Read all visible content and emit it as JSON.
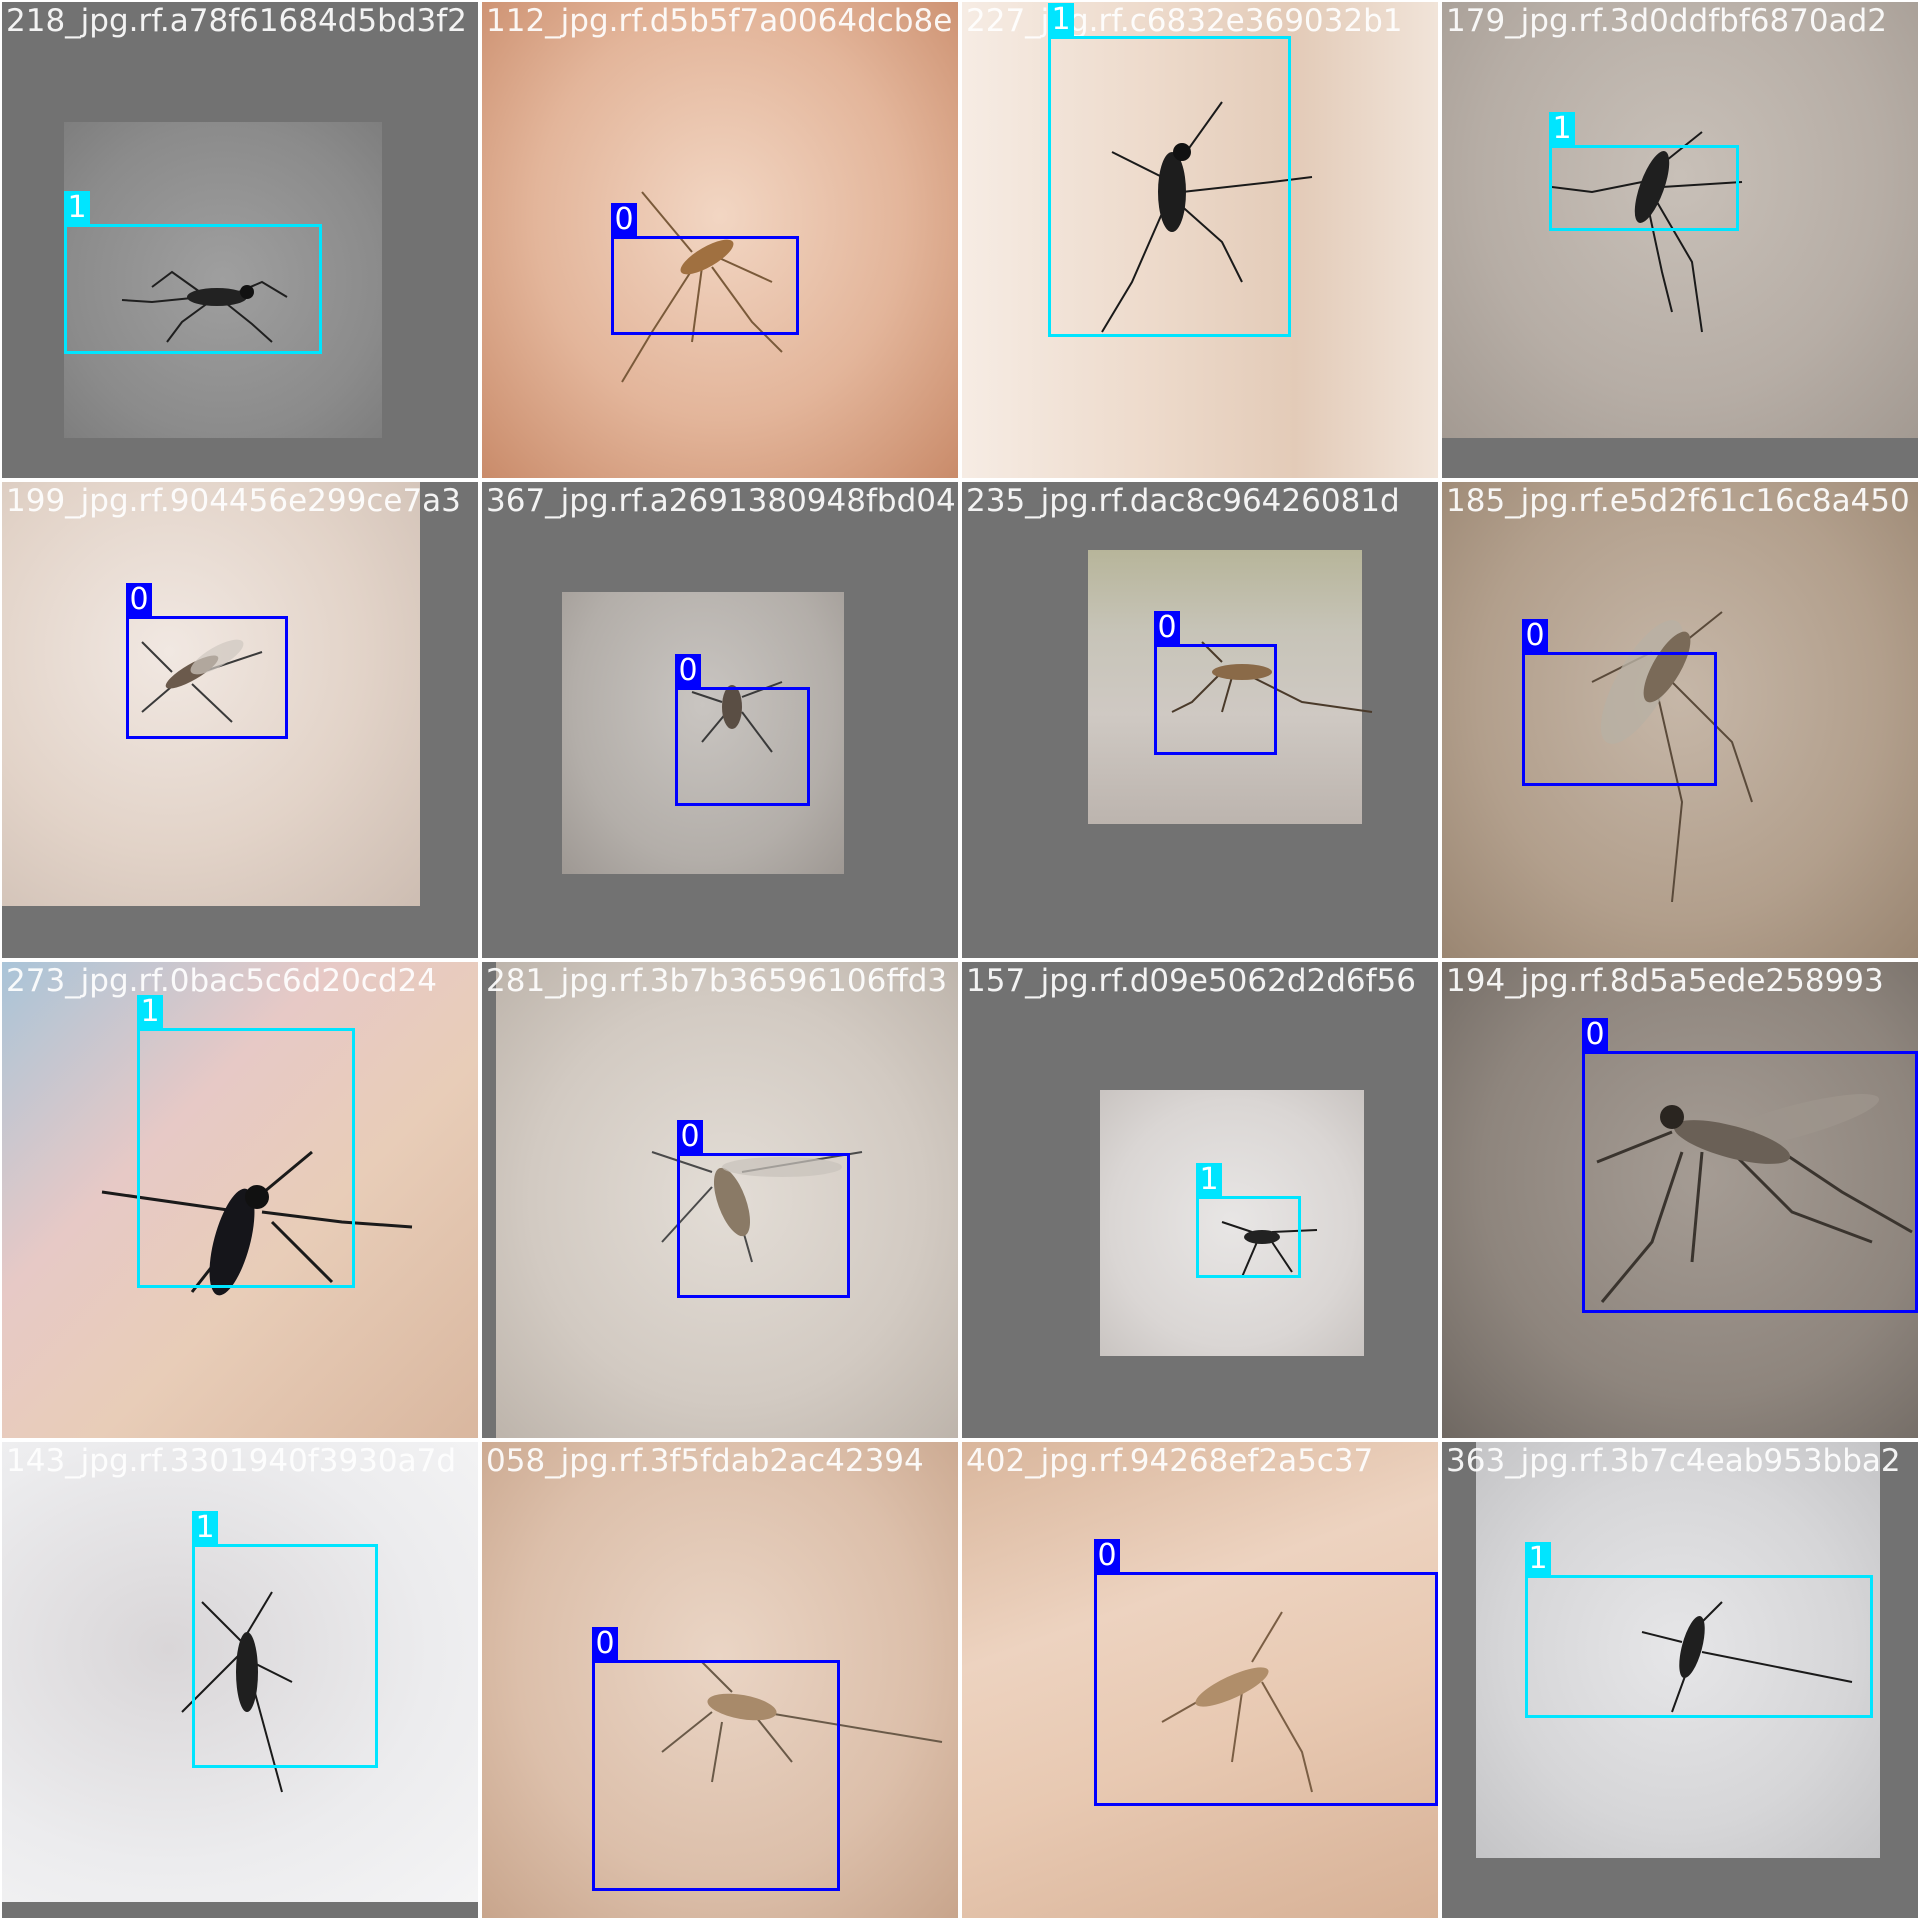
{
  "class_colors": {
    "0": "#0000ff",
    "1": "#00e5ff"
  },
  "tiles": [
    {
      "caption": "218_jpg.rf.a78f61684d5bd3f2",
      "boxes": [
        {
          "label": "1"
        }
      ]
    },
    {
      "caption": "112_jpg.rf.d5b5f7a0064dcb8e",
      "boxes": [
        {
          "label": "0"
        }
      ]
    },
    {
      "caption": "227_jpg.rf.c6832e369032b1",
      "boxes": [
        {
          "label": "1"
        }
      ]
    },
    {
      "caption": "179_jpg.rf.3d0ddfbf6870ad2",
      "boxes": [
        {
          "label": "1"
        }
      ]
    },
    {
      "caption": "199_jpg.rf.904456e299ce7a3",
      "boxes": [
        {
          "label": "0"
        }
      ]
    },
    {
      "caption": "367_jpg.rf.a2691380948fbd04",
      "boxes": [
        {
          "label": "0"
        }
      ]
    },
    {
      "caption": "235_jpg.rf.dac8c96426081d",
      "boxes": [
        {
          "label": "0"
        }
      ]
    },
    {
      "caption": "185_jpg.rf.e5d2f61c16c8a450",
      "boxes": [
        {
          "label": "0"
        }
      ]
    },
    {
      "caption": "273_jpg.rf.0bac5c6d20cd24",
      "boxes": [
        {
          "label": "1"
        }
      ]
    },
    {
      "caption": "281_jpg.rf.3b7b36596106ffd3",
      "boxes": [
        {
          "label": "0"
        }
      ]
    },
    {
      "caption": "157_jpg.rf.d09e5062d2d6f56",
      "boxes": [
        {
          "label": "1"
        }
      ]
    },
    {
      "caption": "194_jpg.rf.8d5a5ede258993",
      "boxes": [
        {
          "label": "0"
        }
      ]
    },
    {
      "caption": "143_jpg.rf.3301940f3930a7d",
      "boxes": [
        {
          "label": "1"
        }
      ]
    },
    {
      "caption": "058_jpg.rf.3f5fdab2ac42394",
      "boxes": [
        {
          "label": "0"
        }
      ]
    },
    {
      "caption": "402_jpg.rf.94268ef2a5c37",
      "boxes": [
        {
          "label": "0"
        }
      ]
    },
    {
      "caption": "363_jpg.rf.3b7c4eab953bba2",
      "boxes": [
        {
          "label": "1"
        }
      ]
    }
  ]
}
